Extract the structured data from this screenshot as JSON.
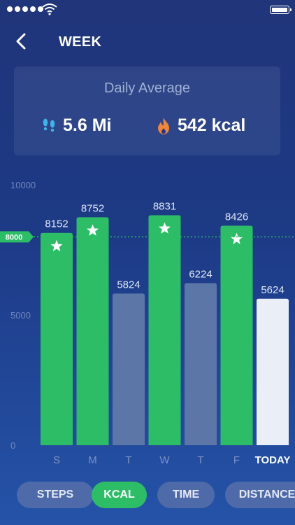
{
  "header": {
    "title": "WEEK"
  },
  "summary": {
    "title": "Daily Average",
    "distance": "5.6 Mi",
    "calories": "542 kcal",
    "distance_icon": "footsteps-icon",
    "calories_icon": "flame-icon"
  },
  "chart_data": {
    "type": "bar",
    "categories": [
      "S",
      "M",
      "T",
      "W",
      "T",
      "F",
      "TODAY"
    ],
    "values": [
      8152,
      8752,
      5824,
      8831,
      6224,
      8426,
      5624
    ],
    "goal_reached": [
      true,
      true,
      false,
      true,
      false,
      true,
      false
    ],
    "goal": 8000,
    "goal_label": "8000",
    "ylim": [
      0,
      10000
    ],
    "yticks": [
      0,
      5000,
      10000
    ],
    "ytick_labels": [
      "0",
      "5000",
      "10000"
    ],
    "colors": {
      "goal_met": "#2dbd67",
      "below_goal": "#5c76a8",
      "today": "#eaeef7",
      "goal_line": "#2dbd67"
    }
  },
  "tabs": [
    {
      "label": "STEPS",
      "active": false
    },
    {
      "label": "KCAL",
      "active": true
    },
    {
      "label": "TIME",
      "active": false
    },
    {
      "label": "DISTANCE",
      "active": false
    }
  ]
}
